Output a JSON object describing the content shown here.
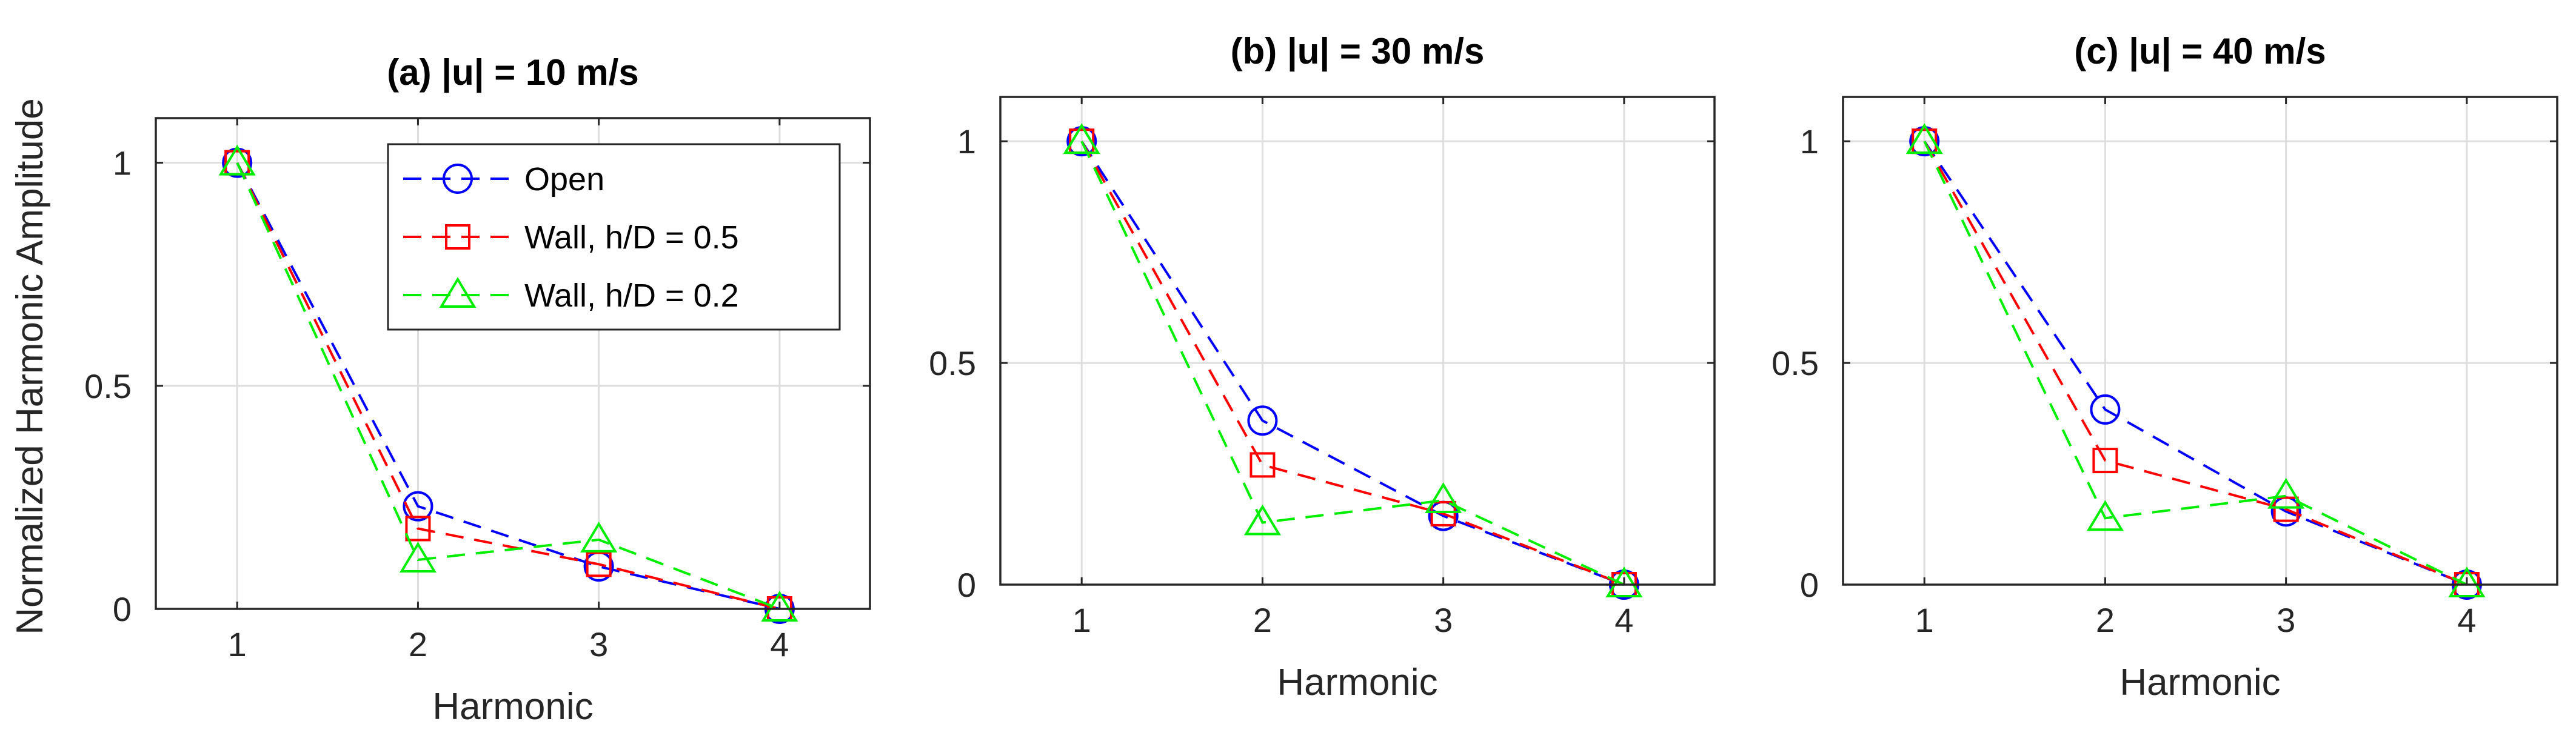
{
  "figure": {
    "ylabel": "Normalized Harmonic Amplitude"
  },
  "legend": {
    "entries": [
      "Open",
      "Wall, h/D = 0.5",
      "Wall, h/D = 0.2"
    ],
    "placement": "top-right of panel (a)"
  },
  "style": {
    "series_colors": [
      "#0000ff",
      "#ff0000",
      "#00ee00"
    ],
    "markers": [
      "circle",
      "square",
      "triangle"
    ],
    "line_style": "dashed"
  },
  "chart_data": [
    {
      "type": "line",
      "title": "(a) |u| = 10 m/s",
      "xlabel": "Harmonic",
      "ylabel": "Normalized Harmonic Amplitude",
      "x": [
        1,
        2,
        3,
        4
      ],
      "xticks": [
        "1",
        "2",
        "3",
        "4"
      ],
      "yticks": [
        "0",
        "0.5",
        "1"
      ],
      "xlim": [
        0.55,
        4.5
      ],
      "ylim": [
        0,
        1.1
      ],
      "grid": true,
      "series": [
        {
          "name": "Open",
          "values": [
            1.0,
            0.23,
            0.095,
            0.0
          ]
        },
        {
          "name": "Wall, h/D = 0.5",
          "values": [
            1.0,
            0.18,
            0.1,
            0.0
          ]
        },
        {
          "name": "Wall, h/D = 0.2",
          "values": [
            1.0,
            0.11,
            0.155,
            0.0
          ]
        }
      ]
    },
    {
      "type": "line",
      "title": "(b) |u| = 30 m/s",
      "xlabel": "Harmonic",
      "ylabel": "",
      "x": [
        1,
        2,
        3,
        4
      ],
      "xticks": [
        "1",
        "2",
        "3",
        "4"
      ],
      "yticks": [
        "0",
        "0.5",
        "1"
      ],
      "xlim": [
        0.55,
        4.5
      ],
      "ylim": [
        0,
        1.1
      ],
      "grid": true,
      "series": [
        {
          "name": "Open",
          "values": [
            1.0,
            0.37,
            0.155,
            0.0
          ]
        },
        {
          "name": "Wall, h/D = 0.5",
          "values": [
            1.0,
            0.27,
            0.16,
            0.0
          ]
        },
        {
          "name": "Wall, h/D = 0.2",
          "values": [
            1.0,
            0.14,
            0.19,
            0.0
          ]
        }
      ]
    },
    {
      "type": "line",
      "title": "(c) |u| = 40 m/s",
      "xlabel": "Harmonic",
      "ylabel": "",
      "x": [
        1,
        2,
        3,
        4
      ],
      "xticks": [
        "1",
        "2",
        "3",
        "4"
      ],
      "yticks": [
        "0",
        "0.5",
        "1"
      ],
      "xlim": [
        0.55,
        4.5
      ],
      "ylim": [
        0,
        1.1
      ],
      "grid": true,
      "series": [
        {
          "name": "Open",
          "values": [
            1.0,
            0.395,
            0.165,
            0.0
          ]
        },
        {
          "name": "Wall, h/D = 0.5",
          "values": [
            1.0,
            0.28,
            0.17,
            0.0
          ]
        },
        {
          "name": "Wall, h/D = 0.2",
          "values": [
            1.0,
            0.15,
            0.2,
            0.0
          ]
        }
      ]
    }
  ]
}
